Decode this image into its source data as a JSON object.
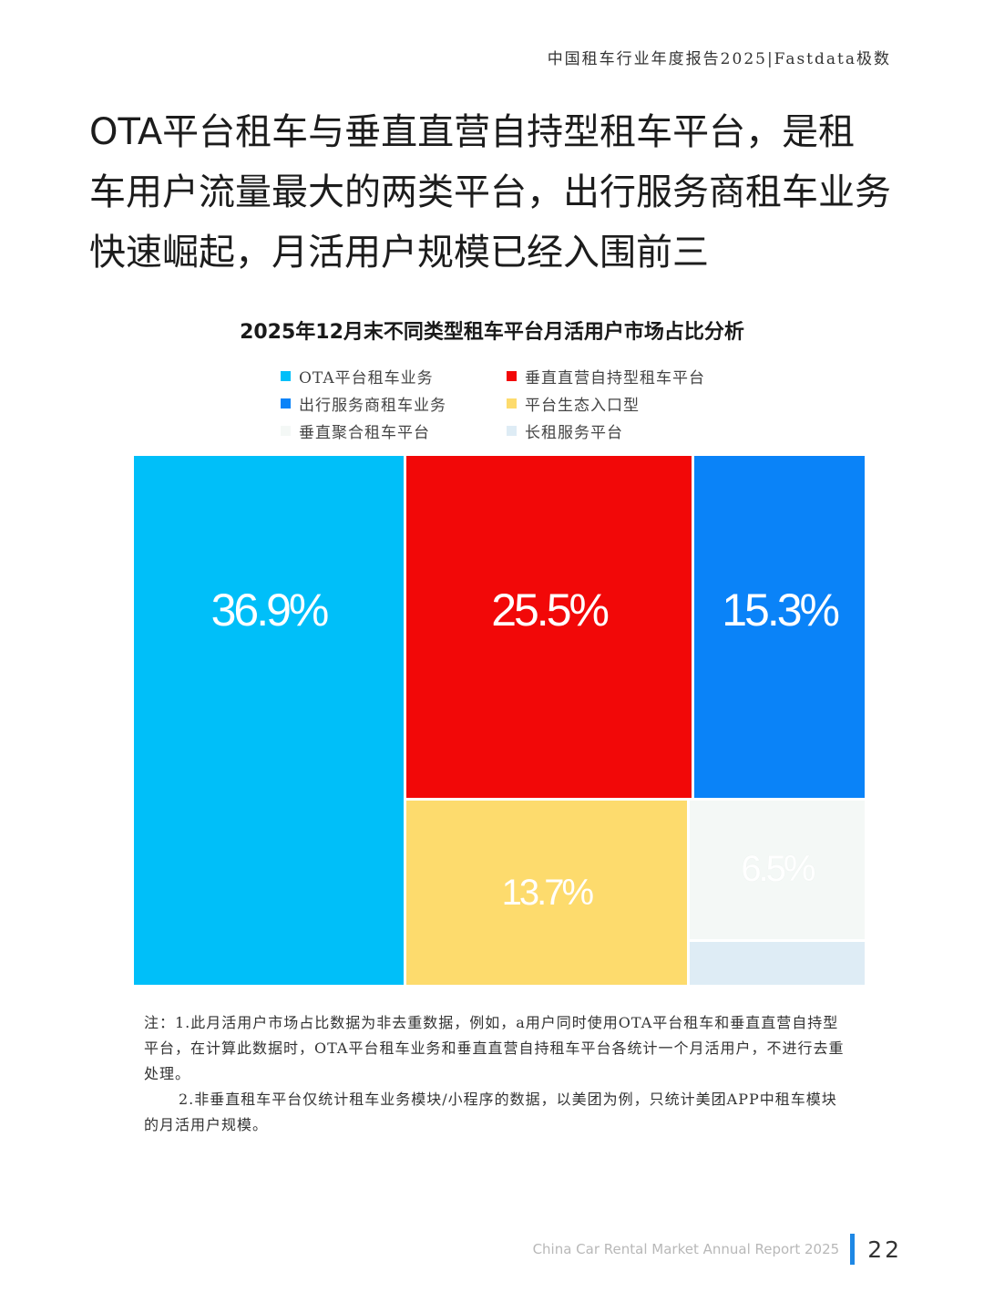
{
  "header": {
    "report_tag": "中国租车行业年度报告2025|Fastdata极数"
  },
  "headline": "OTA平台租车与垂直直营自持型租车平台，是租车用户流量最大的两类平台，出行服务商租车业务快速崛起，月活用户规模已经入围前三",
  "chart_data": {
    "type": "treemap",
    "title": "2025年12月末不同类型租车平台月活用户市场占比分析",
    "legend_placement": "top",
    "series": [
      {
        "name": "OTA平台租车业务",
        "value": 36.9,
        "label": "36.9%",
        "color": "#00bff9"
      },
      {
        "name": "垂直直营自持型租车平台",
        "value": 25.5,
        "label": "25.5%",
        "color": "#f20808"
      },
      {
        "name": "出行服务商租车业务",
        "value": 15.3,
        "label": "15.3%",
        "color": "#0a83f8"
      },
      {
        "name": "平台生态入口型",
        "value": 13.7,
        "label": "13.7%",
        "color": "#fddb6d"
      },
      {
        "name": "垂直聚合租车平台",
        "value": 6.5,
        "label": "6.5%",
        "color": "#f4f8f6"
      },
      {
        "name": "长租服务平台",
        "value": 2.1,
        "label": "",
        "color": "#deecf5"
      }
    ]
  },
  "notes": {
    "note1": "注：1.此月活用户市场占比数据为非去重数据，例如，a用户同时使用OTA平台租车和垂直直营自持型平台，在计算此数据时，OTA平台租车业务和垂直直营自持租车平台各统计一个月活用户，不进行去重处理。",
    "note2": "2.非垂直租车平台仅统计租车业务模块/小程序的数据，以美团为例，只统计美团APP中租车模块的月活用户规模。"
  },
  "footer": {
    "report_name": "China Car Rental Market Annual Report 2025",
    "page_number": "22"
  }
}
